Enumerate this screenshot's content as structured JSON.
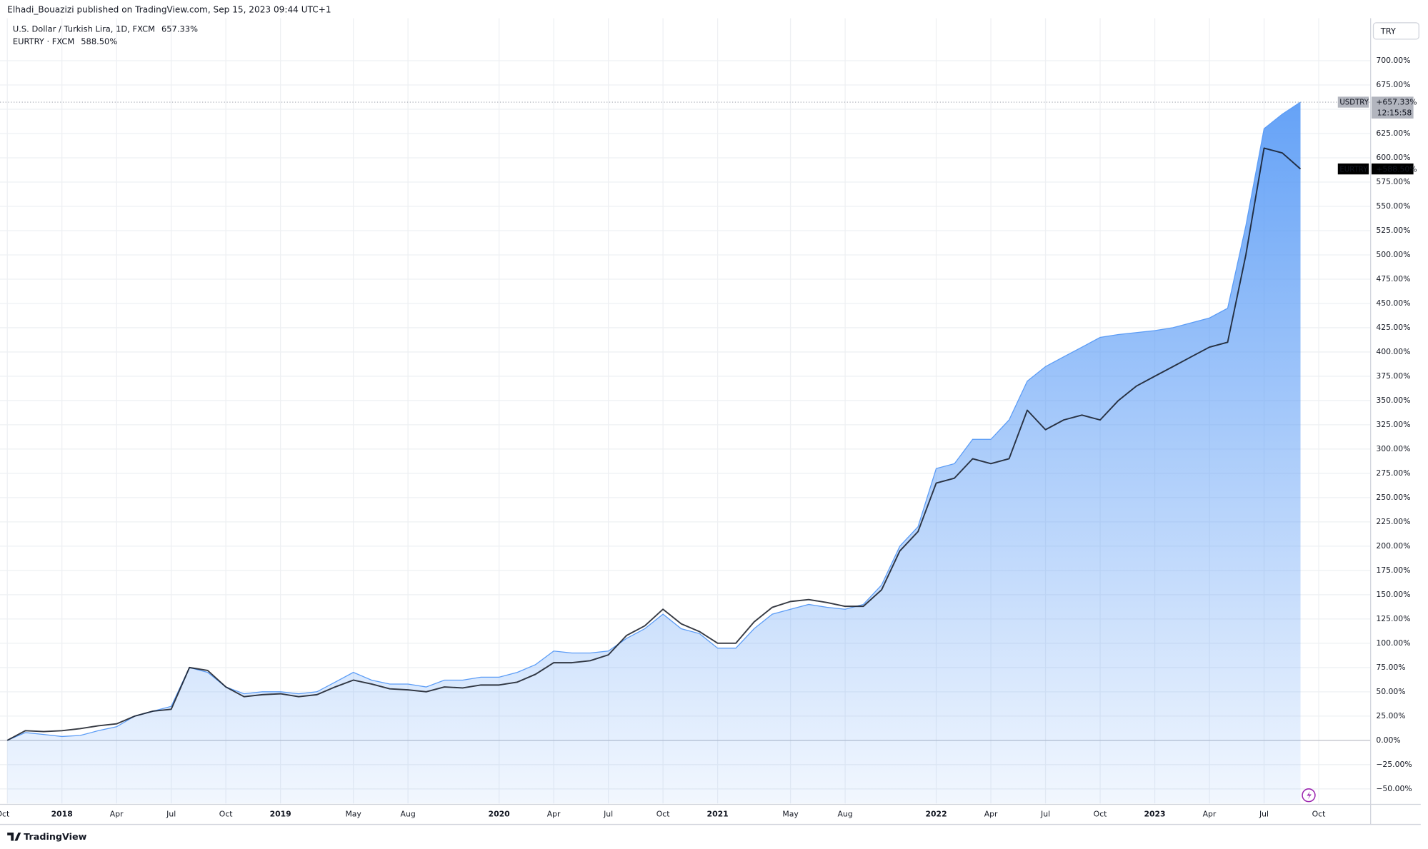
{
  "header": {
    "publisher": "Elhadi_Bouazizi published on TradingView.com, Sep 15, 2023 09:44 UTC+1",
    "currency_button": "TRY",
    "brand": "TradingView"
  },
  "chart_data": {
    "type": "area-line",
    "x": [
      "2017-10",
      "2017-11",
      "2017-12",
      "2018-01",
      "2018-02",
      "2018-03",
      "2018-04",
      "2018-05",
      "2018-06",
      "2018-07",
      "2018-08",
      "2018-09",
      "2018-10",
      "2018-11",
      "2018-12",
      "2019-01",
      "2019-02",
      "2019-03",
      "2019-04",
      "2019-05",
      "2019-06",
      "2019-07",
      "2019-08",
      "2019-09",
      "2019-10",
      "2019-11",
      "2019-12",
      "2020-01",
      "2020-02",
      "2020-03",
      "2020-04",
      "2020-05",
      "2020-06",
      "2020-07",
      "2020-08",
      "2020-09",
      "2020-10",
      "2020-11",
      "2020-12",
      "2021-01",
      "2021-02",
      "2021-03",
      "2021-04",
      "2021-05",
      "2021-06",
      "2021-07",
      "2021-08",
      "2021-09",
      "2021-10",
      "2021-11",
      "2021-12",
      "2022-01",
      "2022-02",
      "2022-03",
      "2022-04",
      "2022-05",
      "2022-06",
      "2022-07",
      "2022-08",
      "2022-09",
      "2022-10",
      "2022-11",
      "2022-12",
      "2023-01",
      "2023-02",
      "2023-03",
      "2023-04",
      "2023-05",
      "2023-06",
      "2023-07",
      "2023-08",
      "2023-09"
    ],
    "series": [
      {
        "name": "USDTRY",
        "legend": "U.S. Dollar / Turkish Lira, 1D, FXCM",
        "legend_value": "657.33%",
        "last_label": "+657.33%",
        "countdown": "12:15:58",
        "style": "area",
        "color": "#5b9cf6",
        "values": [
          0,
          8,
          6,
          4,
          5,
          10,
          14,
          25,
          30,
          35,
          75,
          70,
          55,
          48,
          50,
          50,
          48,
          50,
          60,
          70,
          62,
          58,
          58,
          55,
          62,
          62,
          65,
          65,
          70,
          78,
          92,
          90,
          90,
          92,
          105,
          115,
          130,
          115,
          110,
          95,
          95,
          115,
          130,
          135,
          140,
          137,
          135,
          140,
          160,
          200,
          220,
          280,
          285,
          310,
          310,
          330,
          370,
          385,
          395,
          405,
          415,
          418,
          420,
          422,
          425,
          430,
          435,
          445,
          530,
          630,
          645,
          657.33
        ]
      },
      {
        "name": "EURTRY",
        "legend": "EURTRY · FXCM",
        "legend_value": "588.50%",
        "last_label": "+588.50%",
        "style": "line",
        "color": "#131722",
        "values": [
          0,
          10,
          9,
          10,
          12,
          15,
          17,
          25,
          30,
          32,
          75,
          72,
          55,
          45,
          47,
          48,
          45,
          47,
          55,
          62,
          58,
          53,
          52,
          50,
          55,
          54,
          57,
          57,
          60,
          68,
          80,
          80,
          82,
          88,
          108,
          118,
          135,
          120,
          112,
          100,
          100,
          122,
          137,
          143,
          145,
          142,
          138,
          138,
          155,
          195,
          215,
          265,
          270,
          290,
          285,
          290,
          340,
          320,
          330,
          335,
          330,
          350,
          365,
          375,
          385,
          395,
          405,
          410,
          500,
          610,
          605,
          588.5
        ]
      }
    ],
    "xlim": [
      "2017-10",
      "2023-12"
    ],
    "xticks": [
      {
        "value": "2017-10",
        "label": "Oct"
      },
      {
        "value": "2018-01",
        "label": "2018"
      },
      {
        "value": "2018-04",
        "label": "Apr"
      },
      {
        "value": "2018-07",
        "label": "Jul"
      },
      {
        "value": "2018-10",
        "label": "Oct"
      },
      {
        "value": "2019-01",
        "label": "2019"
      },
      {
        "value": "2019-05",
        "label": "May"
      },
      {
        "value": "2019-08",
        "label": "Aug"
      },
      {
        "value": "2020-01",
        "label": "2020"
      },
      {
        "value": "2020-04",
        "label": "Apr"
      },
      {
        "value": "2020-07",
        "label": "Jul"
      },
      {
        "value": "2020-10",
        "label": "Oct"
      },
      {
        "value": "2021-01",
        "label": "2021"
      },
      {
        "value": "2021-05",
        "label": "May"
      },
      {
        "value": "2021-08",
        "label": "Aug"
      },
      {
        "value": "2022-01",
        "label": "2022"
      },
      {
        "value": "2022-04",
        "label": "Apr"
      },
      {
        "value": "2022-07",
        "label": "Jul"
      },
      {
        "value": "2022-10",
        "label": "Oct"
      },
      {
        "value": "2023-01",
        "label": "2023"
      },
      {
        "value": "2023-04",
        "label": "Apr"
      },
      {
        "value": "2023-07",
        "label": "Jul"
      },
      {
        "value": "2023-10",
        "label": "Oct"
      }
    ],
    "ylim": [
      -65,
      725
    ],
    "yticks": [
      {
        "value": -50,
        "label": "−50.00%"
      },
      {
        "value": -25,
        "label": "−25.00%"
      },
      {
        "value": 0,
        "label": "0.00%"
      },
      {
        "value": 25,
        "label": "25.00%"
      },
      {
        "value": 50,
        "label": "50.00%"
      },
      {
        "value": 75,
        "label": "75.00%"
      },
      {
        "value": 100,
        "label": "100.00%"
      },
      {
        "value": 125,
        "label": "125.00%"
      },
      {
        "value": 150,
        "label": "150.00%"
      },
      {
        "value": 175,
        "label": "175.00%"
      },
      {
        "value": 200,
        "label": "200.00%"
      },
      {
        "value": 225,
        "label": "225.00%"
      },
      {
        "value": 250,
        "label": "250.00%"
      },
      {
        "value": 275,
        "label": "275.00%"
      },
      {
        "value": 300,
        "label": "300.00%"
      },
      {
        "value": 325,
        "label": "325.00%"
      },
      {
        "value": 350,
        "label": "350.00%"
      },
      {
        "value": 375,
        "label": "375.00%"
      },
      {
        "value": 400,
        "label": "400.00%"
      },
      {
        "value": 425,
        "label": "425.00%"
      },
      {
        "value": 450,
        "label": "450.00%"
      },
      {
        "value": 475,
        "label": "475.00%"
      },
      {
        "value": 500,
        "label": "500.00%"
      },
      {
        "value": 525,
        "label": "525.00%"
      },
      {
        "value": 550,
        "label": "550.00%"
      },
      {
        "value": 575,
        "label": "575.00%"
      },
      {
        "value": 600,
        "label": "600.00%"
      },
      {
        "value": 625,
        "label": "625.00%"
      },
      {
        "value": 650,
        "label": "650.00%"
      },
      {
        "value": 675,
        "label": "675.00%"
      },
      {
        "value": 700,
        "label": "700.00%"
      }
    ],
    "grid": true,
    "log_scale": false
  }
}
